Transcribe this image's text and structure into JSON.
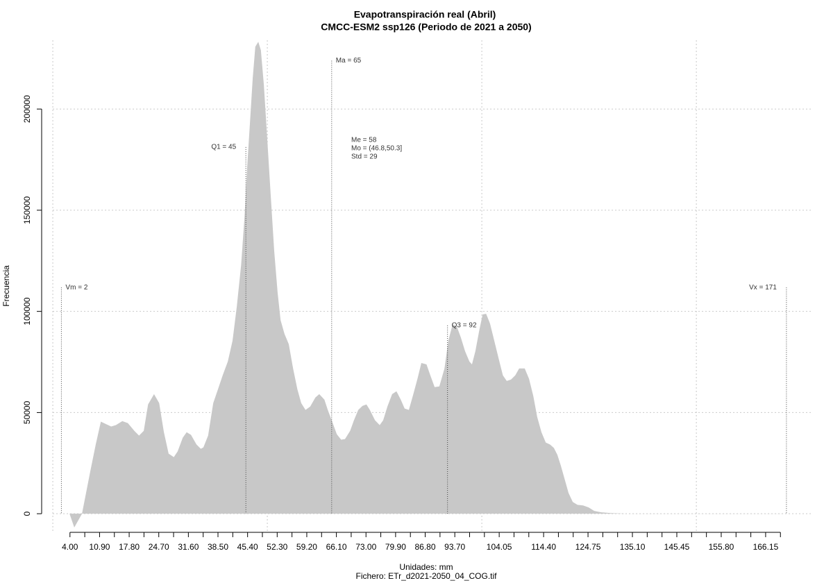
{
  "chart_data": {
    "type": "area",
    "title": "Evapotranspiración real (Abril)",
    "subtitle": "CMCC-ESM2 ssp126 (Periodo de 2021 a 2050)",
    "x_label": "Unidades: mm",
    "caption": "Fichero: ETr_d2021-2050_04_COG.tif",
    "y_label": "Frecuencia",
    "color": "#c8c8c8",
    "x": [
      3.9,
      5.0,
      6.8,
      8.7,
      10.0,
      11.2,
      12.3,
      13.6,
      14.7,
      16.2,
      17.5,
      19.0,
      20.1,
      21.2,
      22.2,
      23.6,
      24.8,
      25.9,
      27.0,
      28.2,
      29.1,
      30.3,
      31.2,
      32.2,
      33.5,
      34.5,
      35.1,
      36.2,
      37.4,
      38.5,
      39.6,
      40.8,
      41.9,
      42.9,
      43.9,
      44.7,
      45.3,
      46.0,
      46.6,
      47.2,
      47.9,
      48.5,
      49.2,
      50.0,
      50.8,
      51.6,
      52.4,
      53.1,
      54.0,
      55.0,
      56.0,
      57.0,
      57.9,
      58.9,
      60.0,
      61.2,
      62.1,
      63.3,
      64.1,
      65.0,
      66.2,
      67.2,
      68.1,
      69.3,
      70.2,
      71.2,
      72.2,
      73.1,
      73.9,
      75.1,
      76.2,
      77.0,
      78.0,
      79.1,
      80.1,
      81.1,
      82.0,
      83.0,
      84.0,
      85.0,
      85.9,
      87.1,
      88.0,
      89.0,
      90.1,
      91.3,
      92.2,
      93.2,
      94.2,
      95.1,
      96.1,
      97.1,
      97.7,
      98.5,
      99.4,
      100.2,
      101.0,
      101.9,
      102.9,
      103.9,
      104.9,
      105.8,
      106.8,
      107.8,
      108.7,
      110.0,
      111.0,
      112.0,
      112.9,
      113.9,
      114.9,
      115.9,
      116.8,
      117.6,
      118.4,
      119.3,
      120.2,
      121.2,
      122.3,
      123.6,
      124.9,
      126.2,
      127.8,
      130.1,
      134.6,
      170.2
    ],
    "values": [
      0,
      -6800,
      0,
      20500,
      34200,
      45500,
      44400,
      43100,
      43800,
      45800,
      44800,
      41000,
      38600,
      41000,
      54000,
      59100,
      54700,
      40300,
      29700,
      28000,
      30800,
      37600,
      40300,
      39000,
      34200,
      32100,
      32800,
      38600,
      54700,
      61500,
      68400,
      75200,
      85500,
      102600,
      123100,
      147000,
      171000,
      194900,
      215400,
      230800,
      233200,
      229100,
      212000,
      184600,
      157300,
      129900,
      109400,
      95700,
      88900,
      83800,
      71800,
      61500,
      54700,
      51300,
      53000,
      57400,
      59100,
      56400,
      51300,
      46200,
      39300,
      36600,
      36900,
      41000,
      46200,
      51300,
      53300,
      54000,
      51300,
      46200,
      43800,
      46200,
      53000,
      59100,
      60500,
      56400,
      52000,
      51300,
      58800,
      66700,
      74500,
      73800,
      68400,
      62600,
      62900,
      71800,
      85500,
      93700,
      92300,
      87200,
      80300,
      75200,
      73800,
      80300,
      90600,
      98500,
      98800,
      94000,
      85500,
      76900,
      68400,
      65600,
      66300,
      68400,
      71800,
      71800,
      66700,
      58100,
      47900,
      40300,
      35200,
      34200,
      32500,
      29100,
      23900,
      17100,
      10300,
      5800,
      4400,
      4100,
      3100,
      1400,
      700,
      300,
      0,
      0
    ],
    "xlim": [
      -2.6,
      177
    ],
    "ylim": [
      -9200,
      234000
    ],
    "xticks": [
      {
        "value": 4,
        "label": "4.00"
      },
      {
        "value": 10.9,
        "label": "10.90"
      },
      {
        "value": 17.8,
        "label": "17.80"
      },
      {
        "value": 24.7,
        "label": "24.70"
      },
      {
        "value": 31.6,
        "label": "31.60"
      },
      {
        "value": 38.5,
        "label": "38.50"
      },
      {
        "value": 45.4,
        "label": "45.40"
      },
      {
        "value": 52.3,
        "label": "52.30"
      },
      {
        "value": 59.2,
        "label": "59.20"
      },
      {
        "value": 66.1,
        "label": "66.10"
      },
      {
        "value": 73,
        "label": "73.00"
      },
      {
        "value": 79.9,
        "label": "79.90"
      },
      {
        "value": 86.8,
        "label": "86.80"
      },
      {
        "value": 93.7,
        "label": "93.70"
      },
      {
        "value": 104.05,
        "label": "104.05"
      },
      {
        "value": 114.4,
        "label": "114.40"
      },
      {
        "value": 124.75,
        "label": "124.75"
      },
      {
        "value": 135.1,
        "label": "135.10"
      },
      {
        "value": 145.45,
        "label": "145.45"
      },
      {
        "value": 155.8,
        "label": "155.80"
      },
      {
        "value": 166.15,
        "label": "166.15"
      }
    ],
    "xminorticks": [
      7.45,
      14.35,
      21.25,
      28.15,
      35.05,
      41.95,
      48.85,
      55.75,
      62.65,
      69.55,
      76.45,
      83.35,
      90.25,
      97.15,
      100.6,
      107.5,
      110.95,
      117.85,
      121.3,
      128.2,
      131.65,
      138.55,
      142,
      148.9,
      152.35,
      159.25,
      162.7,
      169.6
    ],
    "yticks": [
      0,
      50000,
      100000,
      150000,
      200000
    ],
    "xgrid": [
      0,
      50,
      100,
      150
    ],
    "grid": true,
    "annotations": [
      {
        "label": "Vm = 2",
        "x": 2,
        "y": 111800
      },
      {
        "label": "Vx = 171",
        "x": 171,
        "y": 111800
      },
      {
        "label": "Q1 = 45",
        "x": 45,
        "y": 181200
      },
      {
        "label": "Ma = 65",
        "x": 65,
        "y": 223900
      },
      {
        "label": "Q3 = 92",
        "x": 92,
        "y": 93000
      }
    ],
    "stats": [
      "Me = 58",
      "Mo = (46.8,50.3]",
      "Std = 29"
    ]
  }
}
